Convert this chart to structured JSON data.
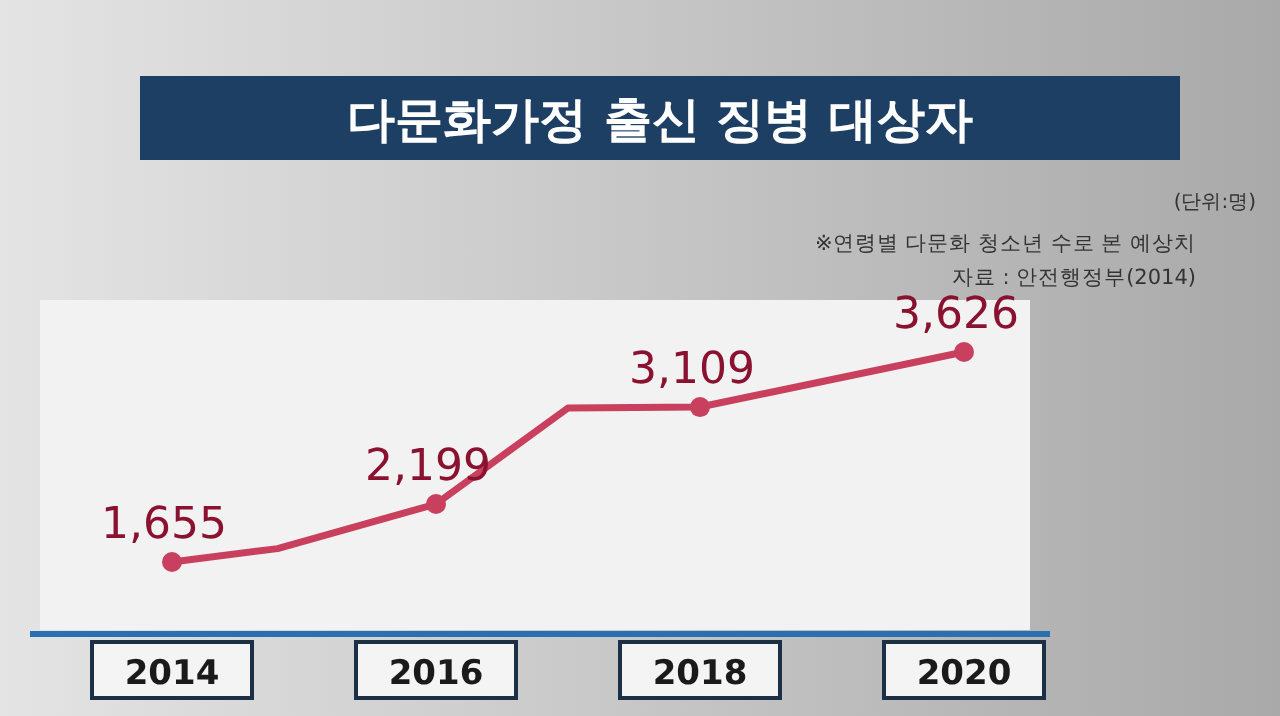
{
  "chart_data": {
    "type": "line",
    "title": "다문화가정 출신 징병 대상자",
    "annotations": [
      "(단위:명)",
      "※연령별 다문화 청소년 수로 본 예상치",
      "자료 : 안전행정부(2014)"
    ],
    "x": [
      2014,
      2014.8,
      2016,
      2017,
      2018,
      2020
    ],
    "xlim": [
      2013,
      2020.5
    ],
    "xticks": [
      2014,
      2016,
      2018,
      2020
    ],
    "series": [
      {
        "color": "#c8405e",
        "values": [
          1655,
          1780,
          2199,
          3100,
          3109,
          3626
        ],
        "value_labels": [
          "1,655",
          null,
          "2,199",
          null,
          "3,109",
          "3,626"
        ]
      }
    ],
    "marker": "circle"
  }
}
